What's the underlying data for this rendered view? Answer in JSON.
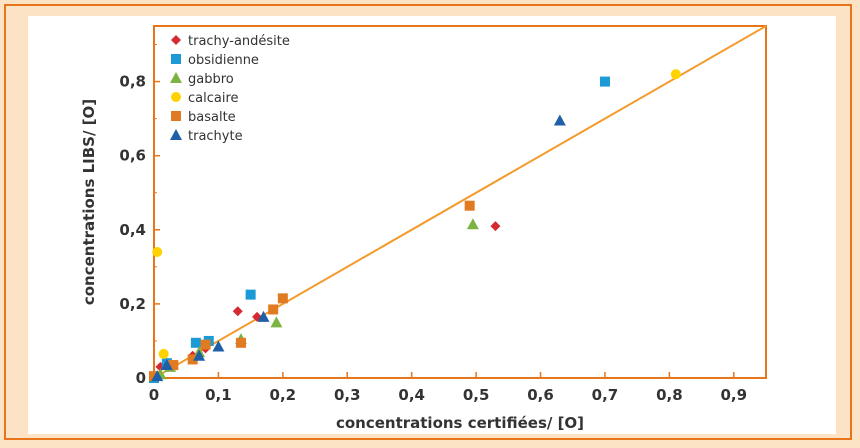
{
  "chart_data": {
    "type": "scatter",
    "title": "",
    "xlabel": "concentrations certifiées/ [O]",
    "ylabel": "concentrations LIBS/ [O]",
    "xlim": [
      0,
      0.95
    ],
    "ylim": [
      0,
      0.95
    ],
    "x_ticks": [
      "0",
      "0,1",
      "0,2",
      "0,3",
      "0,4",
      "0,5",
      "0,6",
      "0,7",
      "0,8",
      "0,9"
    ],
    "y_ticks": [
      "0",
      "0,2",
      "0,4",
      "0,6",
      "0,8"
    ],
    "legend_position": "top-left",
    "grid": false,
    "fit_line": {
      "x": [
        0,
        0.95
      ],
      "y": [
        0,
        0.95
      ],
      "color": "#f39a2a"
    },
    "series": [
      {
        "name": "trachy-andésite",
        "marker": "diamond",
        "color": "#d42a30",
        "points": [
          [
            0.01,
            0.03
          ],
          [
            0.02,
            0.04
          ],
          [
            0.06,
            0.06
          ],
          [
            0.08,
            0.08
          ],
          [
            0.13,
            0.18
          ],
          [
            0.16,
            0.165
          ],
          [
            0.53,
            0.41
          ]
        ]
      },
      {
        "name": "obsidienne",
        "marker": "square",
        "color": "#1b9ad6",
        "points": [
          [
            0.0,
            0.0
          ],
          [
            0.02,
            0.04
          ],
          [
            0.065,
            0.095
          ],
          [
            0.085,
            0.1
          ],
          [
            0.15,
            0.225
          ],
          [
            0.7,
            0.8
          ]
        ]
      },
      {
        "name": "gabbro",
        "marker": "triangle",
        "color": "#7cb342",
        "points": [
          [
            0.01,
            0.01
          ],
          [
            0.025,
            0.03
          ],
          [
            0.07,
            0.07
          ],
          [
            0.135,
            0.105
          ],
          [
            0.19,
            0.15
          ],
          [
            0.495,
            0.415
          ]
        ]
      },
      {
        "name": "calcaire",
        "marker": "circle",
        "color": "#ffd200",
        "points": [
          [
            0.005,
            0.34
          ],
          [
            0.015,
            0.065
          ],
          [
            0.81,
            0.82
          ]
        ]
      },
      {
        "name": "basalte",
        "marker": "square",
        "color": "#e07b22",
        "points": [
          [
            0.0,
            0.005
          ],
          [
            0.03,
            0.035
          ],
          [
            0.06,
            0.05
          ],
          [
            0.08,
            0.09
          ],
          [
            0.135,
            0.095
          ],
          [
            0.185,
            0.185
          ],
          [
            0.2,
            0.215
          ],
          [
            0.49,
            0.465
          ]
        ]
      },
      {
        "name": "trachyte",
        "marker": "triangle",
        "color": "#1f5fa8",
        "points": [
          [
            0.005,
            0.005
          ],
          [
            0.02,
            0.035
          ],
          [
            0.07,
            0.06
          ],
          [
            0.1,
            0.085
          ],
          [
            0.17,
            0.165
          ],
          [
            0.63,
            0.695
          ]
        ]
      }
    ]
  }
}
